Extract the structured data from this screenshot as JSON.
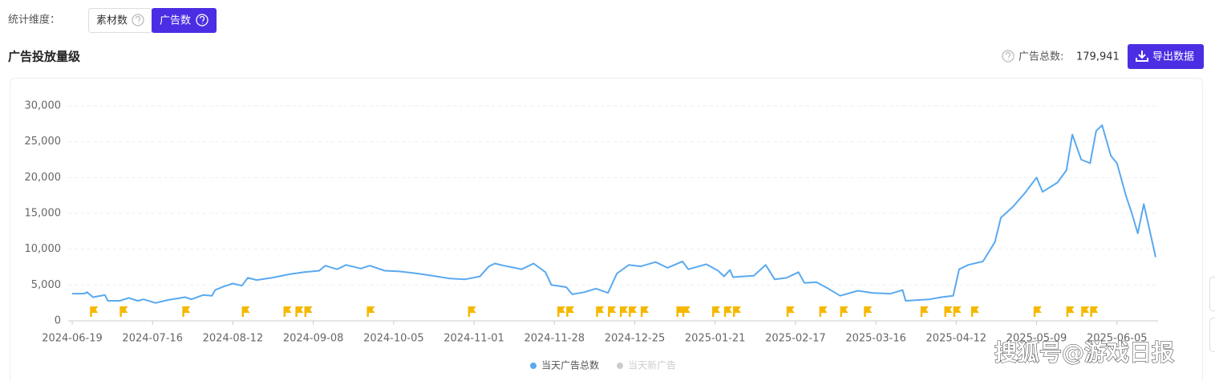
{
  "filter": {
    "label": "统计维度：",
    "options": [
      "素材数",
      "广告数"
    ]
  },
  "section_title": "广告投放量级",
  "total": {
    "label": "广告总数:",
    "value": "179,941"
  },
  "export_button": "导出数据",
  "watermark": "搜狐号@游戏日报",
  "chart_data": {
    "type": "line",
    "x": [
      "2024-06-19",
      "2024-06-23",
      "2024-06-24",
      "2024-06-26",
      "2024-06-30",
      "2024-07-01",
      "2024-07-05",
      "2024-07-08",
      "2024-07-11",
      "2024-07-13",
      "2024-07-17",
      "2024-07-21",
      "2024-07-27",
      "2024-07-29",
      "2024-08-02",
      "2024-08-05",
      "2024-08-06",
      "2024-08-09",
      "2024-08-12",
      "2024-08-15",
      "2024-08-17",
      "2024-08-20",
      "2024-08-25",
      "2024-08-31",
      "2024-09-05",
      "2024-09-10",
      "2024-09-12",
      "2024-09-16",
      "2024-09-19",
      "2024-09-24",
      "2024-09-27",
      "2024-10-02",
      "2024-10-07",
      "2024-10-13",
      "2024-10-18",
      "2024-10-24",
      "2024-10-29",
      "2024-11-03",
      "2024-11-06",
      "2024-11-08",
      "2024-11-11",
      "2024-11-17",
      "2024-11-21",
      "2024-11-25",
      "2024-11-27",
      "2024-12-02",
      "2024-12-04",
      "2024-12-08",
      "2024-12-12",
      "2024-12-16",
      "2024-12-19",
      "2024-12-23",
      "2024-12-27",
      "2025-01-01",
      "2025-01-05",
      "2025-01-10",
      "2025-01-12",
      "2025-01-18",
      "2025-01-22",
      "2025-01-24",
      "2025-01-26",
      "2025-01-27",
      "2025-02-03",
      "2025-02-07",
      "2025-02-10",
      "2025-02-14",
      "2025-02-18",
      "2025-02-20",
      "2025-02-24",
      "2025-02-28",
      "2025-03-04",
      "2025-03-10",
      "2025-03-15",
      "2025-03-21",
      "2025-03-25",
      "2025-03-26",
      "2025-04-03",
      "2025-04-07",
      "2025-04-11",
      "2025-04-13",
      "2025-04-16",
      "2025-04-21",
      "2025-04-25",
      "2025-04-27",
      "2025-05-01",
      "2025-05-05",
      "2025-05-09",
      "2025-05-11",
      "2025-05-16",
      "2025-05-19",
      "2025-05-21",
      "2025-05-24",
      "2025-05-27",
      "2025-05-29",
      "2025-05-31",
      "2025-06-03",
      "2025-06-05",
      "2025-06-08",
      "2025-06-10",
      "2025-06-12",
      "2025-06-14",
      "2025-06-18"
    ],
    "series": [
      {
        "name": "当天广告总数",
        "color": "#5aa9f0",
        "values": [
          3800,
          3800,
          4000,
          3300,
          3600,
          2800,
          2800,
          3200,
          2800,
          3000,
          2500,
          2900,
          3300,
          3000,
          3600,
          3500,
          4300,
          4800,
          5200,
          4900,
          6000,
          5700,
          6000,
          6500,
          6800,
          7000,
          7700,
          7200,
          7800,
          7300,
          7700,
          7000,
          6900,
          6600,
          6300,
          5900,
          5800,
          6200,
          7600,
          8000,
          7700,
          7200,
          8000,
          6800,
          5000,
          4700,
          3700,
          4000,
          4500,
          3900,
          6600,
          7800,
          7600,
          8200,
          7400,
          8300,
          7200,
          7900,
          7000,
          6200,
          7100,
          6100,
          6300,
          7800,
          5800,
          6000,
          6800,
          5300,
          5400,
          4500,
          3500,
          4200,
          3900,
          3800,
          4300,
          2800,
          3000,
          3300,
          3500,
          7200,
          7800,
          8300,
          11000,
          14400,
          15900,
          17800,
          20000,
          18000,
          19300,
          21000,
          26000,
          22500,
          22000,
          26500,
          27300,
          23000,
          22000,
          17500,
          15000,
          12200,
          16300,
          8900
        ]
      }
    ],
    "inactive_legend": {
      "name": "当天新广告",
      "color": "#cccccc"
    },
    "event_dates": [
      "2024-06-25",
      "2024-07-05",
      "2024-07-26",
      "2024-08-15",
      "2024-08-29",
      "2024-09-02",
      "2024-09-05",
      "2024-09-26",
      "2024-10-30",
      "2024-11-29",
      "2024-12-02",
      "2024-12-12",
      "2024-12-16",
      "2024-12-20",
      "2024-12-23",
      "2024-12-27",
      "2025-01-08",
      "2025-01-10",
      "2025-01-20",
      "2025-01-24",
      "2025-01-27",
      "2025-02-14",
      "2025-02-25",
      "2025-03-04",
      "2025-03-12",
      "2025-03-31",
      "2025-04-08",
      "2025-04-11",
      "2025-04-17",
      "2025-05-08",
      "2025-05-19",
      "2025-05-24",
      "2025-05-27"
    ],
    "event_color": "#f5b800",
    "xlim": [
      "2024-06-19",
      "2025-06-18"
    ],
    "xticks": [
      "2024-06-19",
      "2024-07-16",
      "2024-08-12",
      "2024-09-08",
      "2024-10-05",
      "2024-11-01",
      "2024-11-28",
      "2024-12-25",
      "2025-01-21",
      "2025-02-17",
      "2025-03-16",
      "2025-04-12",
      "2025-05-09",
      "2025-06-05"
    ],
    "ylim": [
      0,
      30000
    ],
    "yticks": [
      0,
      {
        "value": 5000,
        "label": "5,000"
      },
      {
        "value": 10000,
        "label": "10,000"
      },
      {
        "value": 15000,
        "label": "15,000"
      },
      {
        "value": 20000,
        "label": "20,000"
      },
      {
        "value": 25000,
        "label": "25,000"
      },
      {
        "value": 30000,
        "label": "30,000"
      }
    ],
    "grid": true
  }
}
